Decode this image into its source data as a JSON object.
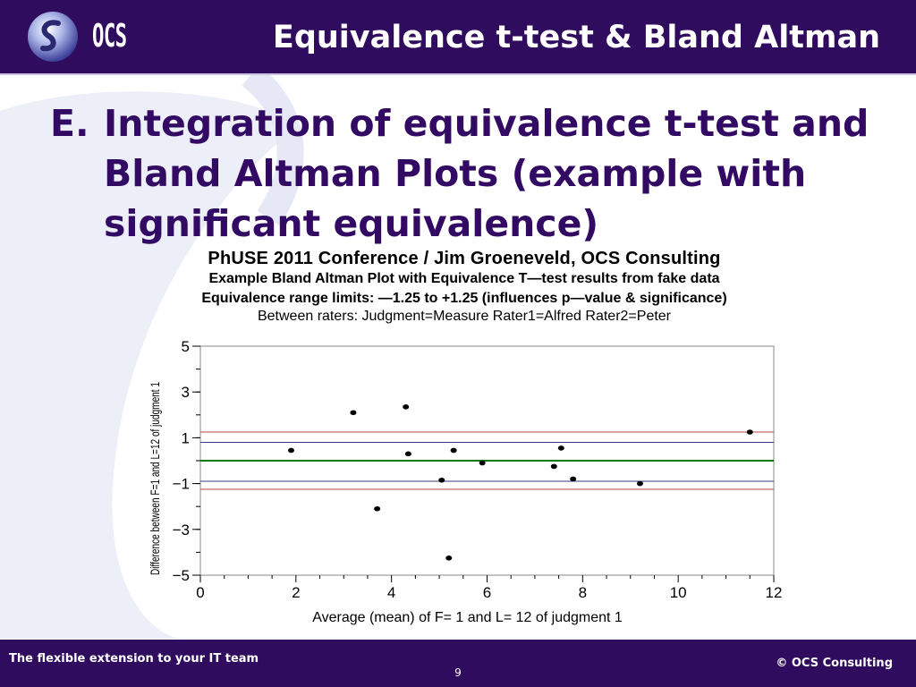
{
  "header": {
    "logo_text": "OCS",
    "title": "Equivalence t-test & Bland Altman"
  },
  "heading": {
    "prefix": "E.",
    "text": "Integration of equivalence t-test and Bland Altman Plots (example with significant equivalence)"
  },
  "footer": {
    "tagline": "The flexible extension to your IT team",
    "page_number": "9",
    "copyright": "© OCS Consulting"
  },
  "colors": {
    "brand": "#300c5e",
    "heading": "#330a63",
    "ref_red": "#c04040",
    "ref_blue": "#3a3a7a",
    "mean_green": "#007a00"
  },
  "chart_data": {
    "type": "scatter",
    "title": "PhUSE 2011 Conference / Jim Groeneveld, OCS Consulting",
    "subtitle_lines": [
      "Example Bland Altman Plot with Equivalence T—test results from fake data",
      "Equivalence range limits: —1.25 to +1.25 (influences p—value & significance)",
      "Between raters: Judgment=Measure Rater1=Alfred Rater2=Peter"
    ],
    "xlabel": "Average (mean) of  F= 1 and L= 12 of judgment 1",
    "ylabel": "Difference between F=1 and L=12 of judgment 1",
    "xlim": [
      0,
      12
    ],
    "ylim": [
      -5,
      5
    ],
    "x_ticks": [
      0,
      2,
      4,
      6,
      8,
      10,
      12
    ],
    "x_tick_labels": [
      "0",
      "2",
      "4",
      "6",
      "8",
      "10",
      "12"
    ],
    "y_ticks": [
      5,
      3,
      1,
      -1,
      -3,
      -5
    ],
    "y_tick_labels": [
      "5",
      "3",
      "1",
      "−1",
      "−3",
      "−5"
    ],
    "x": [
      1.9,
      3.2,
      3.7,
      4.3,
      4.35,
      5.05,
      5.2,
      5.3,
      5.9,
      7.4,
      7.55,
      7.8,
      9.2,
      11.5
    ],
    "y": [
      0.45,
      2.1,
      -2.1,
      2.35,
      0.3,
      -0.85,
      -4.25,
      0.45,
      -0.1,
      -0.25,
      0.55,
      -0.8,
      -1.0,
      1.25
    ],
    "reference_lines": [
      {
        "y": 1.25,
        "color": "#c04040"
      },
      {
        "y": 0.8,
        "color": "#3a3a7a"
      },
      {
        "y": 0.0,
        "color": "#007a00"
      },
      {
        "y": -0.9,
        "color": "#3a3a7a"
      },
      {
        "y": -1.25,
        "color": "#c04040"
      }
    ],
    "grid": false
  }
}
